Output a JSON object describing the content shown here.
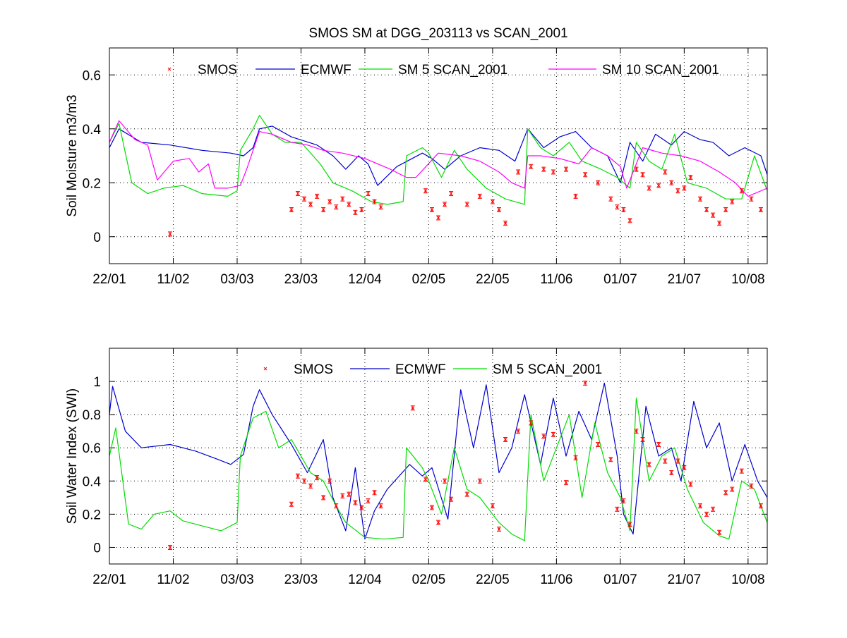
{
  "chart_data": [
    {
      "type": "line",
      "title": "SMOS SM at DGG_203113 vs SCAN_2001",
      "ylabel": "Soil Moisture m3/m3",
      "xlabel": "",
      "grid": true,
      "legend_position": "top",
      "xlim": [
        "2010-01-22",
        "2010-08-16"
      ],
      "ylim": [
        -0.1,
        0.7
      ],
      "x_ticks": [
        "22/01",
        "11/02",
        "03/03",
        "23/03",
        "12/04",
        "02/05",
        "22/05",
        "11/06",
        "01/07",
        "21/07",
        "10/08"
      ],
      "y_ticks": [
        "0",
        "0.2",
        "0.4",
        "0.6"
      ],
      "y_tick_values": [
        0,
        0.2,
        0.4,
        0.6
      ],
      "colors": {
        "SMOS": "#ff0000",
        "ECMWF": "#0000cc",
        "SM 5 SCAN_2001": "#00dd00",
        "SM 10 SCAN_2001": "#ff00ff"
      },
      "series": [
        {
          "name": "ECMWF",
          "kind": "line",
          "x": [
            "2010-01-22",
            "2010-01-25",
            "2010-02-01",
            "2010-02-10",
            "2010-02-20",
            "2010-03-01",
            "2010-03-05",
            "2010-03-08",
            "2010-03-10",
            "2010-03-14",
            "2010-03-20",
            "2010-03-28",
            "2010-04-02",
            "2010-04-06",
            "2010-04-10",
            "2010-04-13",
            "2010-04-16",
            "2010-04-22",
            "2010-04-30",
            "2010-05-03",
            "2010-05-07",
            "2010-05-12",
            "2010-05-18",
            "2010-05-24",
            "2010-05-29",
            "2010-06-02",
            "2010-06-07",
            "2010-06-12",
            "2010-06-17",
            "2010-06-22",
            "2010-06-27",
            "2010-07-01",
            "2010-07-04",
            "2010-07-08",
            "2010-07-12",
            "2010-07-17",
            "2010-07-21",
            "2010-07-26",
            "2010-07-30",
            "2010-08-04",
            "2010-08-09",
            "2010-08-14",
            "2010-08-16"
          ],
          "y": [
            0.33,
            0.4,
            0.35,
            0.34,
            0.32,
            0.31,
            0.3,
            0.33,
            0.4,
            0.41,
            0.37,
            0.34,
            0.3,
            0.25,
            0.3,
            0.27,
            0.19,
            0.26,
            0.31,
            0.29,
            0.25,
            0.3,
            0.33,
            0.32,
            0.28,
            0.4,
            0.33,
            0.37,
            0.39,
            0.33,
            0.3,
            0.2,
            0.35,
            0.28,
            0.38,
            0.34,
            0.39,
            0.36,
            0.35,
            0.3,
            0.33,
            0.3,
            0.23
          ]
        },
        {
          "name": "SM 5 SCAN_2001",
          "kind": "line",
          "x": [
            "2010-01-22",
            "2010-01-25",
            "2010-01-29",
            "2010-02-03",
            "2010-02-08",
            "2010-02-14",
            "2010-02-20",
            "2010-02-28",
            "2010-03-03",
            "2010-03-04",
            "2010-03-08",
            "2010-03-10",
            "2010-03-14",
            "2010-03-18",
            "2010-03-23",
            "2010-03-29",
            "2010-04-02",
            "2010-04-08",
            "2010-04-14",
            "2010-04-19",
            "2010-04-24",
            "2010-04-25",
            "2010-04-30",
            "2010-05-02",
            "2010-05-06",
            "2010-05-10",
            "2010-05-14",
            "2010-05-20",
            "2010-05-26",
            "2010-06-01",
            "2010-06-02",
            "2010-06-06",
            "2010-06-10",
            "2010-06-15",
            "2010-06-19",
            "2010-06-25",
            "2010-06-30",
            "2010-07-04",
            "2010-07-06",
            "2010-07-10",
            "2010-07-14",
            "2010-07-18",
            "2010-07-22",
            "2010-07-28",
            "2010-08-03",
            "2010-08-08",
            "2010-08-12",
            "2010-08-16"
          ],
          "y": [
            0.35,
            0.42,
            0.2,
            0.16,
            0.18,
            0.19,
            0.16,
            0.15,
            0.17,
            0.32,
            0.4,
            0.45,
            0.38,
            0.35,
            0.35,
            0.27,
            0.2,
            0.17,
            0.13,
            0.12,
            0.13,
            0.3,
            0.33,
            0.31,
            0.22,
            0.32,
            0.25,
            0.18,
            0.14,
            0.12,
            0.4,
            0.33,
            0.3,
            0.35,
            0.28,
            0.25,
            0.22,
            0.18,
            0.35,
            0.28,
            0.25,
            0.38,
            0.2,
            0.18,
            0.14,
            0.14,
            0.3,
            0.17
          ]
        },
        {
          "name": "SM 10 SCAN_2001",
          "kind": "line",
          "x": [
            "2010-01-22",
            "2010-01-25",
            "2010-01-30",
            "2010-02-03",
            "2010-02-06",
            "2010-02-11",
            "2010-02-16",
            "2010-02-19",
            "2010-02-22",
            "2010-02-24",
            "2010-02-28",
            "2010-03-04",
            "2010-03-06",
            "2010-03-10",
            "2010-03-14",
            "2010-03-20",
            "2010-03-25",
            "2010-03-30",
            "2010-04-05",
            "2010-04-12",
            "2010-04-20",
            "2010-04-25",
            "2010-04-28",
            "2010-05-05",
            "2010-05-12",
            "2010-05-18",
            "2010-05-24",
            "2010-05-28",
            "2010-06-01",
            "2010-06-02",
            "2010-06-06",
            "2010-06-12",
            "2010-06-18",
            "2010-06-22",
            "2010-06-27",
            "2010-07-01",
            "2010-07-03",
            "2010-07-08",
            "2010-07-14",
            "2010-07-20",
            "2010-07-26",
            "2010-08-01",
            "2010-08-06",
            "2010-08-10",
            "2010-08-16"
          ],
          "y": [
            0.35,
            0.43,
            0.36,
            0.34,
            0.21,
            0.28,
            0.29,
            0.24,
            0.27,
            0.18,
            0.18,
            0.19,
            0.25,
            0.39,
            0.38,
            0.35,
            0.34,
            0.32,
            0.31,
            0.29,
            0.25,
            0.22,
            0.22,
            0.31,
            0.3,
            0.28,
            0.24,
            0.2,
            0.18,
            0.3,
            0.3,
            0.29,
            0.27,
            0.33,
            0.3,
            0.26,
            0.18,
            0.33,
            0.31,
            0.3,
            0.28,
            0.24,
            0.2,
            0.15,
            0.18
          ]
        },
        {
          "name": "SMOS",
          "kind": "errorbar",
          "x": [
            "2010-02-10",
            "2010-03-20",
            "2010-03-22",
            "2010-03-24",
            "2010-03-26",
            "2010-03-28",
            "2010-03-30",
            "2010-04-01",
            "2010-04-03",
            "2010-04-05",
            "2010-04-07",
            "2010-04-09",
            "2010-04-11",
            "2010-04-13",
            "2010-04-15",
            "2010-04-17",
            "2010-05-01",
            "2010-05-03",
            "2010-05-05",
            "2010-05-07",
            "2010-05-09",
            "2010-05-14",
            "2010-05-18",
            "2010-05-22",
            "2010-05-24",
            "2010-05-26",
            "2010-05-30",
            "2010-06-03",
            "2010-06-07",
            "2010-06-10",
            "2010-06-14",
            "2010-06-17",
            "2010-06-20",
            "2010-06-24",
            "2010-06-28",
            "2010-06-30",
            "2010-07-02",
            "2010-07-04",
            "2010-07-06",
            "2010-07-08",
            "2010-07-10",
            "2010-07-13",
            "2010-07-15",
            "2010-07-17",
            "2010-07-19",
            "2010-07-21",
            "2010-07-23",
            "2010-07-26",
            "2010-07-28",
            "2010-07-30",
            "2010-08-01",
            "2010-08-03",
            "2010-08-05",
            "2010-08-08",
            "2010-08-11",
            "2010-08-14"
          ],
          "y": [
            0.01,
            0.1,
            0.16,
            0.14,
            0.12,
            0.15,
            0.1,
            0.13,
            0.11,
            0.14,
            0.12,
            0.09,
            0.1,
            0.16,
            0.13,
            0.11,
            0.17,
            0.1,
            0.07,
            0.12,
            0.16,
            0.12,
            0.15,
            0.13,
            0.1,
            0.05,
            0.24,
            0.26,
            0.25,
            0.24,
            0.25,
            0.15,
            0.23,
            0.2,
            0.14,
            0.11,
            0.1,
            0.06,
            0.25,
            0.23,
            0.18,
            0.19,
            0.24,
            0.2,
            0.17,
            0.18,
            0.22,
            0.14,
            0.1,
            0.08,
            0.05,
            0.1,
            0.13,
            0.17,
            0.14,
            0.1
          ]
        }
      ]
    },
    {
      "type": "line",
      "title": "",
      "ylabel": "Soil Water Index (SWI)",
      "xlabel": "",
      "grid": true,
      "legend_position": "top",
      "xlim": [
        "2010-01-22",
        "2010-08-16"
      ],
      "ylim": [
        -0.1,
        1.2
      ],
      "x_ticks": [
        "22/01",
        "11/02",
        "03/03",
        "23/03",
        "12/04",
        "02/05",
        "22/05",
        "11/06",
        "01/07",
        "21/07",
        "10/08"
      ],
      "y_ticks": [
        "0",
        "0.2",
        "0.4",
        "0.6",
        "0.8",
        "1"
      ],
      "y_tick_values": [
        0,
        0.2,
        0.4,
        0.6,
        0.8,
        1
      ],
      "colors": {
        "SMOS": "#ff0000",
        "ECMWF": "#0000cc",
        "SM 5 SCAN_2001": "#00dd00"
      },
      "series": [
        {
          "name": "ECMWF",
          "kind": "line",
          "x": [
            "2010-01-22",
            "2010-01-23",
            "2010-01-27",
            "2010-02-01",
            "2010-02-10",
            "2010-02-18",
            "2010-02-25",
            "2010-03-01",
            "2010-03-05",
            "2010-03-08",
            "2010-03-10",
            "2010-03-14",
            "2010-03-20",
            "2010-03-25",
            "2010-03-30",
            "2010-04-02",
            "2010-04-06",
            "2010-04-09",
            "2010-04-12",
            "2010-04-15",
            "2010-04-19",
            "2010-04-26",
            "2010-04-30",
            "2010-05-03",
            "2010-05-08",
            "2010-05-12",
            "2010-05-16",
            "2010-05-20",
            "2010-05-24",
            "2010-05-28",
            "2010-06-01",
            "2010-06-06",
            "2010-06-10",
            "2010-06-14",
            "2010-06-18",
            "2010-06-22",
            "2010-06-26",
            "2010-06-30",
            "2010-07-02",
            "2010-07-05",
            "2010-07-09",
            "2010-07-13",
            "2010-07-17",
            "2010-07-20",
            "2010-07-24",
            "2010-07-28",
            "2010-08-01",
            "2010-08-05",
            "2010-08-09",
            "2010-08-13",
            "2010-08-16"
          ],
          "y": [
            0.8,
            0.97,
            0.7,
            0.6,
            0.62,
            0.58,
            0.53,
            0.5,
            0.56,
            0.85,
            0.95,
            0.8,
            0.62,
            0.45,
            0.65,
            0.3,
            0.1,
            0.48,
            0.05,
            0.22,
            0.35,
            0.5,
            0.43,
            0.48,
            0.17,
            0.95,
            0.6,
            0.98,
            0.45,
            0.6,
            0.92,
            0.5,
            0.9,
            0.55,
            0.82,
            0.65,
            0.99,
            0.55,
            0.2,
            0.08,
            0.85,
            0.55,
            0.6,
            0.4,
            0.88,
            0.6,
            0.75,
            0.4,
            0.62,
            0.4,
            0.3
          ]
        },
        {
          "name": "SM 5 SCAN_2001",
          "kind": "line",
          "x": [
            "2010-01-22",
            "2010-01-24",
            "2010-01-28",
            "2010-02-01",
            "2010-02-05",
            "2010-02-10",
            "2010-02-14",
            "2010-02-20",
            "2010-02-26",
            "2010-03-03",
            "2010-03-04",
            "2010-03-08",
            "2010-03-12",
            "2010-03-16",
            "2010-03-20",
            "2010-03-26",
            "2010-03-30",
            "2010-04-03",
            "2010-04-06",
            "2010-04-12",
            "2010-04-18",
            "2010-04-24",
            "2010-04-25",
            "2010-04-30",
            "2010-05-02",
            "2010-05-06",
            "2010-05-10",
            "2010-05-14",
            "2010-05-18",
            "2010-05-24",
            "2010-05-28",
            "2010-06-01",
            "2010-06-03",
            "2010-06-07",
            "2010-06-11",
            "2010-06-15",
            "2010-06-19",
            "2010-06-23",
            "2010-06-27",
            "2010-07-01",
            "2010-07-04",
            "2010-07-06",
            "2010-07-10",
            "2010-07-14",
            "2010-07-18",
            "2010-07-22",
            "2010-07-27",
            "2010-08-01",
            "2010-08-04",
            "2010-08-08",
            "2010-08-12",
            "2010-08-16"
          ],
          "y": [
            0.55,
            0.72,
            0.14,
            0.11,
            0.2,
            0.22,
            0.16,
            0.13,
            0.1,
            0.15,
            0.55,
            0.78,
            0.82,
            0.6,
            0.65,
            0.45,
            0.4,
            0.25,
            0.15,
            0.06,
            0.05,
            0.06,
            0.6,
            0.48,
            0.4,
            0.2,
            0.6,
            0.35,
            0.3,
            0.15,
            0.08,
            0.04,
            0.8,
            0.4,
            0.6,
            0.8,
            0.3,
            0.75,
            0.45,
            0.3,
            0.1,
            0.9,
            0.4,
            0.55,
            0.6,
            0.35,
            0.15,
            0.07,
            0.05,
            0.4,
            0.35,
            0.15
          ]
        },
        {
          "name": "SMOS",
          "kind": "errorbar",
          "x": [
            "2010-02-10",
            "2010-03-20",
            "2010-03-22",
            "2010-03-24",
            "2010-03-26",
            "2010-03-28",
            "2010-03-30",
            "2010-04-01",
            "2010-04-03",
            "2010-04-05",
            "2010-04-07",
            "2010-04-09",
            "2010-04-11",
            "2010-04-13",
            "2010-04-15",
            "2010-04-17",
            "2010-04-27",
            "2010-05-01",
            "2010-05-03",
            "2010-05-05",
            "2010-05-07",
            "2010-05-09",
            "2010-05-14",
            "2010-05-18",
            "2010-05-22",
            "2010-05-24",
            "2010-05-26",
            "2010-05-30",
            "2010-06-03",
            "2010-06-07",
            "2010-06-10",
            "2010-06-14",
            "2010-06-17",
            "2010-06-20",
            "2010-06-24",
            "2010-06-28",
            "2010-06-30",
            "2010-07-02",
            "2010-07-04",
            "2010-07-06",
            "2010-07-08",
            "2010-07-10",
            "2010-07-13",
            "2010-07-15",
            "2010-07-17",
            "2010-07-19",
            "2010-07-21",
            "2010-07-23",
            "2010-07-26",
            "2010-07-28",
            "2010-07-30",
            "2010-08-01",
            "2010-08-03",
            "2010-08-05",
            "2010-08-08",
            "2010-08-11",
            "2010-08-14"
          ],
          "y": [
            0.0,
            0.26,
            0.43,
            0.4,
            0.37,
            0.42,
            0.3,
            0.4,
            0.25,
            0.31,
            0.32,
            0.27,
            0.24,
            0.28,
            0.33,
            0.25,
            0.84,
            0.41,
            0.24,
            0.15,
            0.4,
            0.29,
            0.32,
            0.4,
            0.25,
            0.11,
            0.65,
            0.7,
            0.75,
            0.67,
            0.68,
            0.39,
            0.54,
            0.99,
            0.62,
            0.53,
            0.23,
            0.28,
            0.14,
            0.7,
            0.65,
            0.5,
            0.62,
            0.52,
            0.45,
            0.52,
            0.48,
            0.38,
            0.25,
            0.2,
            0.23,
            0.09,
            0.33,
            0.35,
            0.46,
            0.37,
            0.25
          ]
        }
      ]
    }
  ]
}
